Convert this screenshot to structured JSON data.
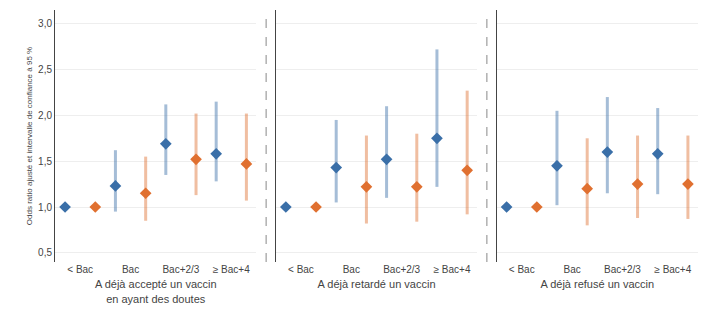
{
  "chart_data": [
    {
      "type": "scatter",
      "xlabel": "A déjà accepté un vaccin\nen ayant des doutes",
      "ylabel": "Odds ratio ajusté et intervalle de confiance à 95 %",
      "categories": [
        "< Bac",
        "Bac",
        "Bac+2/3",
        "≥ Bac+4"
      ],
      "ylim": [
        0.4,
        3.15
      ],
      "yticks": [
        {
          "value": 0.5,
          "label": "0,5"
        },
        {
          "value": 1.0,
          "label": "1,0"
        },
        {
          "value": 1.5,
          "label": "1,5"
        },
        {
          "value": 2.0,
          "label": "2,0"
        },
        {
          "value": 2.5,
          "label": "2,5"
        },
        {
          "value": 3.0,
          "label": "3,0"
        }
      ],
      "grid": true,
      "marker": "diamond",
      "series": [
        {
          "color": "#3a6fa8",
          "values": [
            1.0,
            1.23,
            1.69,
            1.58
          ],
          "ci_low": [
            1.0,
            0.95,
            1.35,
            1.28
          ],
          "ci_high": [
            1.0,
            1.62,
            2.12,
            2.15
          ]
        },
        {
          "color": "#e07030",
          "values": [
            1.0,
            1.15,
            1.52,
            1.47
          ],
          "ci_low": [
            1.0,
            0.85,
            1.13,
            1.07
          ],
          "ci_high": [
            1.0,
            1.55,
            2.02,
            2.02
          ]
        }
      ]
    },
    {
      "type": "scatter",
      "xlabel": "A déjà retardé un vaccin",
      "categories": [
        "< Bac",
        "Bac",
        "Bac+2/3",
        "≥ Bac+4"
      ],
      "ylim": [
        0.4,
        3.15
      ],
      "yticks": [
        {
          "value": 0.5,
          "label": "0,5"
        },
        {
          "value": 1.0,
          "label": "1,0"
        },
        {
          "value": 1.5,
          "label": "1,5"
        },
        {
          "value": 2.0,
          "label": "2,0"
        },
        {
          "value": 2.5,
          "label": "2,5"
        },
        {
          "value": 3.0,
          "label": "3,0"
        }
      ],
      "grid": true,
      "tick_labels": "x",
      "marker": "diamond",
      "series": [
        {
          "color": "#3a6fa8",
          "values": [
            1.0,
            1.43,
            1.52,
            1.75
          ],
          "ci_low": [
            1.0,
            1.05,
            1.1,
            1.22
          ],
          "ci_high": [
            1.0,
            1.95,
            2.1,
            2.72
          ]
        },
        {
          "color": "#e07030",
          "values": [
            1.0,
            1.22,
            1.22,
            1.4
          ],
          "ci_low": [
            1.0,
            0.82,
            0.84,
            0.92
          ],
          "ci_high": [
            1.0,
            1.78,
            1.8,
            2.27
          ]
        }
      ]
    },
    {
      "type": "scatter",
      "xlabel": "A déjà refusé un vaccin",
      "categories": [
        "< Bac",
        "Bac",
        "Bac+2/3",
        "≥ Bac+4"
      ],
      "ylim": [
        0.4,
        3.15
      ],
      "yticks": [
        {
          "value": 0.5,
          "label": "0,5"
        },
        {
          "value": 1.0,
          "label": "1,0"
        },
        {
          "value": 1.5,
          "label": "1,5"
        },
        {
          "value": 2.0,
          "label": "2,0"
        },
        {
          "value": 2.5,
          "label": "2,5"
        },
        {
          "value": 3.0,
          "label": "3,0"
        }
      ],
      "grid": true,
      "tick_labels": "x",
      "marker": "diamond",
      "series": [
        {
          "color": "#3a6fa8",
          "values": [
            1.0,
            1.45,
            1.6,
            1.58
          ],
          "ci_low": [
            1.0,
            1.02,
            1.15,
            1.14
          ],
          "ci_high": [
            1.0,
            2.05,
            2.2,
            2.08
          ]
        },
        {
          "color": "#e07030",
          "values": [
            1.0,
            1.2,
            1.25,
            1.25
          ],
          "ci_low": [
            1.0,
            0.8,
            0.88,
            0.87
          ],
          "ci_high": [
            1.0,
            1.75,
            1.78,
            1.78
          ]
        }
      ]
    }
  ]
}
